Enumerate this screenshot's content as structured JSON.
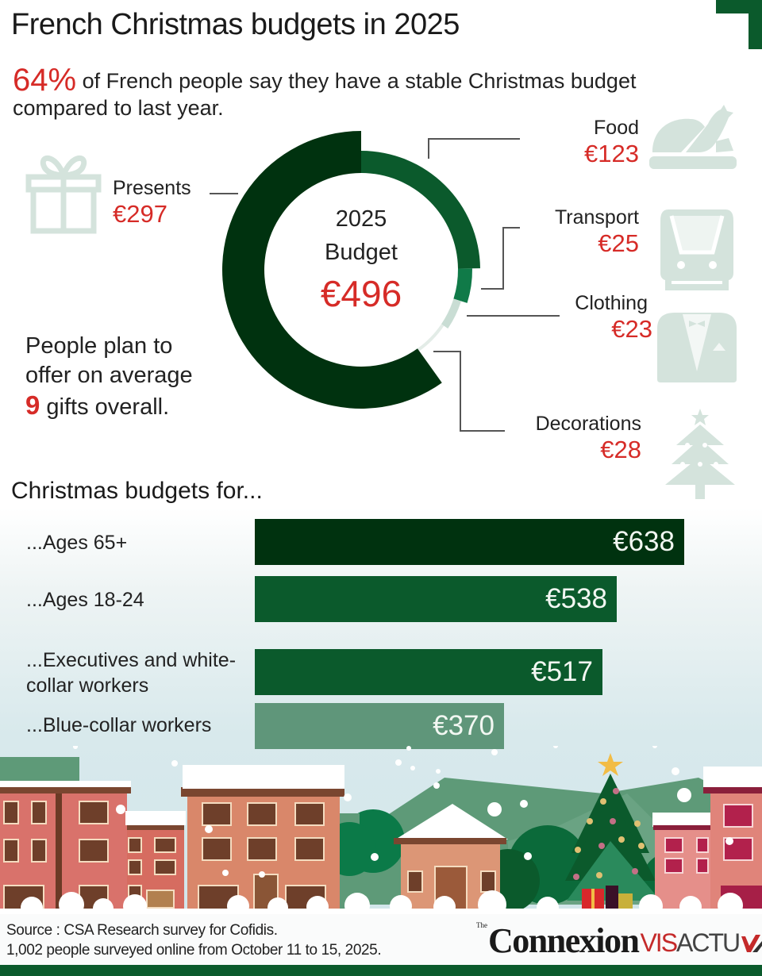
{
  "header": {
    "title": "French Christmas budgets in 2025",
    "intro_highlight": "64%",
    "intro_text": " of French people say they have a stable Christmas budget compared to last year."
  },
  "donut": {
    "center_line1": "2025",
    "center_line2": "Budget",
    "center_total": "€496"
  },
  "gifts_note": {
    "text_before": "People plan to offer on average ",
    "highlight": "9",
    "text_after": " gifts overall."
  },
  "bars_section": {
    "title": "Christmas budgets for..."
  },
  "footer": {
    "source_line1": "Source : CSA Research survey for Cofidis.",
    "source_line2": "1,002 people surveyed online from October 11 to 15, 2025.",
    "logo_the": "The",
    "logo_main": "Connexion",
    "logo_sub_red": "VIS",
    "logo_sub_dark": "ACTU"
  },
  "colors": {
    "accent_red": "#d62b27",
    "dark_green": "#00320f",
    "mid_green": "#0b5a2c",
    "light_green": "#107a48",
    "pale_green": "#c9ddd4",
    "paler_green": "#e3ece7",
    "muted_green": "#5f967a",
    "icon_gray": "#d4e3dc"
  },
  "chart_data": [
    {
      "type": "pie",
      "title": "2025 Budget",
      "total": 496,
      "unit": "€",
      "slices": [
        {
          "name": "Food",
          "value": 123,
          "label": "€123",
          "color": "#0b5a2c",
          "icon": "turkey-icon"
        },
        {
          "name": "Transport",
          "value": 25,
          "label": "€25",
          "color": "#107a48",
          "icon": "train-icon"
        },
        {
          "name": "Clothing",
          "value": 23,
          "label": "€23",
          "color": "#c9ddd4",
          "icon": "tuxedo-icon"
        },
        {
          "name": "Decorations",
          "value": 28,
          "label": "€28",
          "color": "#e3ece7",
          "icon": "christmas-tree-icon"
        },
        {
          "name": "Presents",
          "value": 297,
          "label": "€297",
          "color": "#00320f",
          "icon": "gift-icon"
        }
      ]
    },
    {
      "type": "bar",
      "orientation": "horizontal",
      "title": "Christmas budgets for...",
      "xlabel": "",
      "ylabel": "",
      "unit": "€",
      "categories": [
        "...Ages 65+",
        "...Ages 18-24",
        "...Executives and white-collar workers",
        "...Blue-collar workers"
      ],
      "values": [
        638,
        538,
        517,
        370
      ],
      "value_labels": [
        "€638",
        "€538",
        "€517",
        "€370"
      ],
      "colors": [
        "#00320f",
        "#0b5a2c",
        "#0b5a2c",
        "#5f967a"
      ]
    }
  ]
}
